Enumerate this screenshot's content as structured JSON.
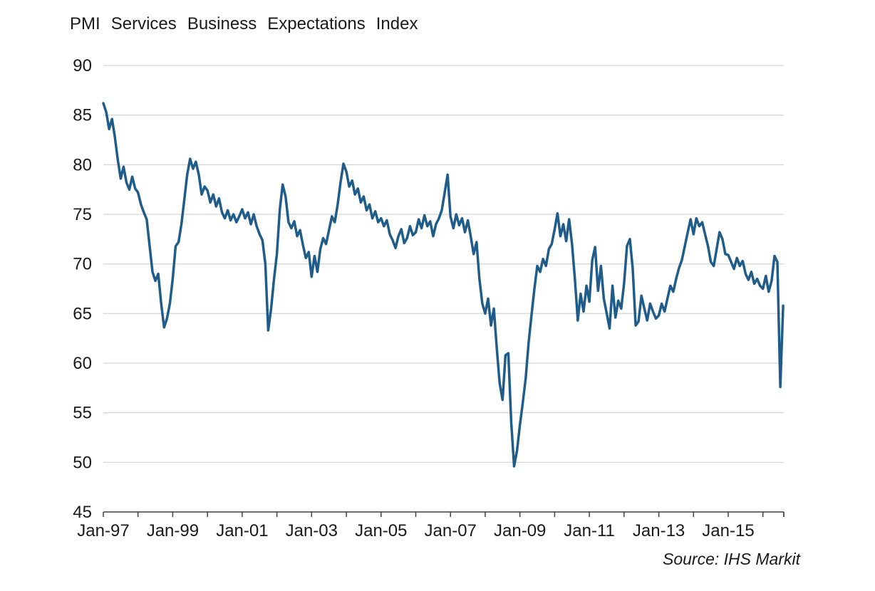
{
  "chart_data": {
    "type": "line",
    "title": "PMI Services Business Expectations Index",
    "source_note": "Source: IHS Markit",
    "frequency": "monthly",
    "start": "1997-01",
    "end": "2016-08",
    "ylim": [
      45,
      90
    ],
    "yticks": [
      45,
      50,
      55,
      60,
      65,
      70,
      75,
      80,
      85,
      90
    ],
    "x_tick_labels": [
      "Jan-97",
      "Jan-99",
      "Jan-01",
      "Jan-03",
      "Jan-05",
      "Jan-07",
      "Jan-09",
      "Jan-11",
      "Jan-13",
      "Jan-15"
    ],
    "x_label_interval_months": 24,
    "x_minor_tick_interval_months": 12,
    "grid": "horizontal",
    "legend": "none",
    "line_color": "#1f5c8a",
    "grid_color": "#c9c9c9",
    "axis_color": "#404040",
    "text_color": "#1a1a1a",
    "series": [
      {
        "name": "PMI Services Business Expectations Index",
        "values": [
          86.2,
          85.3,
          83.6,
          84.6,
          82.8,
          80.5,
          78.6,
          79.8,
          78.2,
          77.5,
          78.8,
          77.6,
          77.2,
          76.0,
          75.2,
          74.5,
          71.8,
          69.2,
          68.3,
          69.0,
          66.0,
          63.6,
          64.5,
          66.0,
          68.5,
          71.8,
          72.2,
          74.0,
          76.5,
          79.0,
          80.6,
          79.6,
          80.3,
          79.0,
          77.0,
          77.8,
          77.4,
          76.2,
          77.0,
          75.8,
          76.6,
          75.2,
          74.6,
          75.4,
          74.4,
          75.0,
          74.2,
          74.8,
          75.5,
          74.6,
          75.2,
          74.0,
          75.0,
          73.8,
          73.0,
          72.4,
          70.0,
          63.3,
          65.5,
          68.5,
          71.0,
          75.5,
          78.0,
          76.8,
          74.2,
          73.6,
          74.3,
          72.8,
          73.4,
          71.9,
          70.6,
          71.2,
          68.7,
          70.8,
          69.2,
          71.5,
          72.6,
          72.0,
          73.4,
          74.8,
          74.2,
          76.0,
          78.2,
          80.1,
          79.3,
          77.8,
          78.4,
          77.0,
          77.6,
          76.2,
          76.8,
          75.4,
          76.0,
          74.6,
          75.3,
          74.2,
          74.6,
          73.8,
          74.4,
          73.0,
          72.4,
          71.6,
          72.8,
          73.5,
          72.1,
          72.6,
          73.8,
          72.9,
          73.2,
          74.5,
          73.6,
          74.9,
          73.8,
          74.3,
          72.8,
          74.0,
          74.6,
          75.4,
          77.2,
          79.0,
          74.8,
          73.6,
          75.0,
          73.9,
          74.6,
          73.2,
          74.4,
          72.8,
          71.0,
          72.2,
          68.5,
          66.0,
          65.0,
          66.5,
          63.8,
          65.5,
          61.5,
          58.0,
          56.3,
          60.8,
          61.0,
          54.0,
          49.6,
          51.2,
          53.8,
          56.0,
          58.5,
          62.0,
          64.8,
          67.5,
          69.8,
          69.2,
          70.5,
          69.8,
          71.5,
          72.0,
          73.5,
          75.1,
          72.8,
          74.0,
          72.3,
          74.5,
          72.0,
          68.5,
          64.3,
          67.0,
          65.2,
          67.8,
          66.2,
          70.4,
          71.7,
          67.3,
          69.8,
          66.5,
          65.0,
          63.5,
          67.8,
          64.6,
          66.3,
          65.5,
          68.0,
          71.8,
          72.5,
          69.5,
          63.8,
          64.2,
          66.8,
          65.5,
          64.3,
          66.0,
          65.2,
          64.5,
          64.8,
          66.0,
          65.2,
          66.5,
          67.8,
          67.2,
          68.5,
          69.6,
          70.4,
          71.8,
          73.2,
          74.5,
          73.0,
          74.6,
          73.8,
          74.2,
          73.0,
          71.8,
          70.2,
          69.8,
          71.5,
          73.2,
          72.5,
          71.0,
          70.9,
          70.2,
          69.5,
          70.6,
          69.8,
          70.3,
          69.0,
          68.4,
          69.2,
          68.0,
          68.5,
          67.8,
          67.5,
          68.8,
          67.2,
          68.3,
          70.8,
          70.2,
          57.6,
          65.8
        ]
      }
    ]
  }
}
